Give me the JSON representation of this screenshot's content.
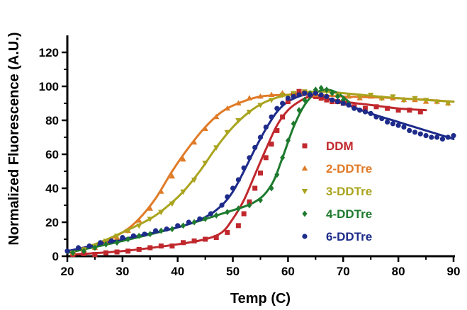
{
  "chart_data": {
    "type": "scatter",
    "xlabel": "Temp (C)",
    "ylabel": "Normalized Fluorescence (A.U.)",
    "xlim": [
      20,
      90
    ],
    "ylim": [
      0,
      130
    ],
    "xticks": [
      20,
      30,
      40,
      50,
      60,
      70,
      80,
      90
    ],
    "yticks": [
      0,
      20,
      40,
      60,
      80,
      100,
      120
    ],
    "grid": false,
    "legend_position": "right",
    "series": [
      {
        "name": "DDM",
        "color": "#c0282d",
        "marker": "square",
        "points": [
          [
            21,
            1
          ],
          [
            23,
            1.5
          ],
          [
            25,
            1
          ],
          [
            27,
            2
          ],
          [
            29,
            2.5
          ],
          [
            31,
            3
          ],
          [
            33,
            4
          ],
          [
            35,
            5
          ],
          [
            37,
            6
          ],
          [
            39,
            6
          ],
          [
            41,
            8
          ],
          [
            43,
            9
          ],
          [
            45,
            10
          ],
          [
            47,
            11
          ],
          [
            49,
            14
          ],
          [
            51,
            18
          ],
          [
            52,
            25
          ],
          [
            53,
            32
          ],
          [
            54,
            40
          ],
          [
            55,
            49
          ],
          [
            56,
            58
          ],
          [
            57,
            66
          ],
          [
            58,
            74
          ],
          [
            59,
            82
          ],
          [
            60,
            91
          ],
          [
            61,
            95
          ],
          [
            62,
            97
          ],
          [
            63,
            96
          ],
          [
            64,
            95
          ],
          [
            65,
            94
          ],
          [
            66,
            93
          ],
          [
            67,
            92
          ],
          [
            68,
            91
          ],
          [
            69,
            91
          ],
          [
            70,
            90
          ],
          [
            72,
            88
          ],
          [
            74,
            87
          ],
          [
            76,
            88
          ],
          [
            78,
            87
          ],
          [
            80,
            86
          ],
          [
            82,
            86
          ],
          [
            84,
            85
          ]
        ],
        "fit": [
          [
            21,
            1
          ],
          [
            30,
            3
          ],
          [
            40,
            7
          ],
          [
            45,
            10
          ],
          [
            48,
            14
          ],
          [
            50,
            22
          ],
          [
            52,
            33
          ],
          [
            54,
            48
          ],
          [
            56,
            63
          ],
          [
            58,
            77
          ],
          [
            60,
            86
          ],
          [
            62,
            91
          ],
          [
            64,
            94
          ],
          [
            66,
            93
          ],
          [
            70,
            91
          ],
          [
            75,
            89
          ],
          [
            80,
            87
          ],
          [
            85,
            86
          ]
        ]
      },
      {
        "name": "2-DDTre",
        "color": "#e07b28",
        "marker": "triangle-up",
        "points": [
          [
            21,
            2
          ],
          [
            23,
            4
          ],
          [
            25,
            5
          ],
          [
            27,
            8
          ],
          [
            29,
            11
          ],
          [
            31,
            15
          ],
          [
            33,
            21
          ],
          [
            35,
            28
          ],
          [
            37,
            38
          ],
          [
            39,
            47
          ],
          [
            41,
            57
          ],
          [
            43,
            67
          ],
          [
            45,
            75
          ],
          [
            47,
            82
          ],
          [
            49,
            87
          ],
          [
            51,
            90
          ],
          [
            53,
            93
          ],
          [
            55,
            94
          ],
          [
            57,
            95
          ],
          [
            59,
            96
          ],
          [
            61,
            95
          ],
          [
            63,
            96
          ],
          [
            65,
            95
          ],
          [
            67,
            94
          ],
          [
            69,
            95
          ],
          [
            71,
            94
          ],
          [
            73,
            93
          ],
          [
            75,
            94
          ],
          [
            77,
            93
          ],
          [
            79,
            93
          ],
          [
            81,
            92
          ],
          [
            83,
            92
          ],
          [
            85,
            91
          ],
          [
            87,
            91
          ],
          [
            89,
            90
          ]
        ],
        "fit": [
          [
            20,
            2
          ],
          [
            25,
            6
          ],
          [
            30,
            14
          ],
          [
            33,
            22
          ],
          [
            36,
            34
          ],
          [
            39,
            50
          ],
          [
            42,
            64
          ],
          [
            45,
            76
          ],
          [
            48,
            85
          ],
          [
            51,
            90
          ],
          [
            55,
            94
          ],
          [
            60,
            95
          ],
          [
            65,
            95
          ],
          [
            70,
            94
          ],
          [
            80,
            93
          ],
          [
            90,
            91
          ]
        ]
      },
      {
        "name": "3-DDTre",
        "color": "#a9a41e",
        "marker": "triangle-down",
        "points": [
          [
            21,
            2
          ],
          [
            23,
            4
          ],
          [
            25,
            6
          ],
          [
            27,
            9
          ],
          [
            29,
            12
          ],
          [
            31,
            15
          ],
          [
            33,
            18
          ],
          [
            35,
            22
          ],
          [
            37,
            26
          ],
          [
            39,
            31
          ],
          [
            41,
            38
          ],
          [
            43,
            45
          ],
          [
            45,
            55
          ],
          [
            47,
            64
          ],
          [
            49,
            73
          ],
          [
            51,
            80
          ],
          [
            53,
            85
          ],
          [
            55,
            89
          ],
          [
            57,
            92
          ],
          [
            59,
            95
          ],
          [
            61,
            96
          ],
          [
            63,
            97
          ],
          [
            65,
            96
          ],
          [
            67,
            97
          ],
          [
            69,
            95
          ],
          [
            71,
            95
          ],
          [
            73,
            94
          ],
          [
            75,
            95
          ],
          [
            77,
            93
          ],
          [
            79,
            94
          ],
          [
            81,
            92
          ],
          [
            83,
            93
          ],
          [
            85,
            92
          ],
          [
            87,
            91
          ],
          [
            89,
            90
          ]
        ],
        "fit": [
          [
            20,
            2
          ],
          [
            25,
            7
          ],
          [
            30,
            14
          ],
          [
            35,
            22
          ],
          [
            38,
            29
          ],
          [
            41,
            38
          ],
          [
            44,
            50
          ],
          [
            47,
            64
          ],
          [
            50,
            76
          ],
          [
            53,
            85
          ],
          [
            56,
            91
          ],
          [
            60,
            95
          ],
          [
            65,
            97
          ],
          [
            70,
            96
          ],
          [
            80,
            93
          ],
          [
            90,
            91
          ]
        ]
      },
      {
        "name": "4-DDTre",
        "color": "#1e7a2e",
        "marker": "diamond",
        "points": [
          [
            21,
            2
          ],
          [
            23,
            3
          ],
          [
            25,
            5
          ],
          [
            27,
            7
          ],
          [
            29,
            8
          ],
          [
            31,
            10
          ],
          [
            33,
            12
          ],
          [
            35,
            13
          ],
          [
            37,
            15
          ],
          [
            39,
            16
          ],
          [
            41,
            18
          ],
          [
            43,
            20
          ],
          [
            45,
            22
          ],
          [
            47,
            24
          ],
          [
            49,
            26
          ],
          [
            51,
            28
          ],
          [
            53,
            30
          ],
          [
            55,
            33
          ],
          [
            57,
            40
          ],
          [
            58,
            48
          ],
          [
            59,
            58
          ],
          [
            60,
            68
          ],
          [
            61,
            78
          ],
          [
            62,
            86
          ],
          [
            63,
            92
          ],
          [
            64,
            96
          ],
          [
            65,
            98
          ],
          [
            66,
            99
          ],
          [
            67,
            98
          ],
          [
            68,
            96
          ],
          [
            69,
            94
          ],
          [
            70,
            92
          ],
          [
            71,
            90
          ]
        ],
        "fit": [
          [
            20,
            2
          ],
          [
            30,
            9
          ],
          [
            40,
            17
          ],
          [
            48,
            25
          ],
          [
            54,
            32
          ],
          [
            57,
            42
          ],
          [
            59,
            58
          ],
          [
            61,
            76
          ],
          [
            63,
            89
          ],
          [
            65,
            96
          ],
          [
            67,
            98
          ],
          [
            69,
            96
          ],
          [
            71,
            91
          ]
        ]
      },
      {
        "name": "6-DDTre",
        "color": "#1d2b8a",
        "marker": "circle",
        "points": [
          [
            20,
            3
          ],
          [
            22,
            5
          ],
          [
            24,
            6
          ],
          [
            26,
            8
          ],
          [
            28,
            9
          ],
          [
            30,
            11
          ],
          [
            32,
            12
          ],
          [
            34,
            13
          ],
          [
            36,
            15
          ],
          [
            38,
            16
          ],
          [
            40,
            18
          ],
          [
            42,
            20
          ],
          [
            44,
            22
          ],
          [
            46,
            25
          ],
          [
            48,
            30
          ],
          [
            49,
            35
          ],
          [
            50,
            40
          ],
          [
            51,
            45
          ],
          [
            52,
            52
          ],
          [
            53,
            58
          ],
          [
            54,
            64
          ],
          [
            55,
            70
          ],
          [
            56,
            76
          ],
          [
            57,
            82
          ],
          [
            58,
            87
          ],
          [
            59,
            90
          ],
          [
            60,
            93
          ],
          [
            61,
            94
          ],
          [
            62,
            95
          ],
          [
            63,
            96
          ],
          [
            64,
            95
          ],
          [
            65,
            96
          ],
          [
            66,
            95
          ],
          [
            67,
            94
          ],
          [
            68,
            92
          ],
          [
            69,
            91
          ],
          [
            70,
            90
          ],
          [
            71,
            89
          ],
          [
            72,
            87
          ],
          [
            73,
            86
          ],
          [
            74,
            85
          ],
          [
            75,
            84
          ],
          [
            76,
            82
          ],
          [
            77,
            81
          ],
          [
            78,
            79
          ],
          [
            79,
            78
          ],
          [
            80,
            77
          ],
          [
            81,
            76
          ],
          [
            82,
            74
          ],
          [
            83,
            73
          ],
          [
            84,
            72
          ],
          [
            85,
            71
          ],
          [
            86,
            70
          ],
          [
            87,
            70
          ],
          [
            88,
            69
          ],
          [
            89,
            70
          ],
          [
            90,
            71
          ]
        ],
        "fit": [
          [
            20,
            3
          ],
          [
            30,
            10
          ],
          [
            40,
            17
          ],
          [
            45,
            23
          ],
          [
            48,
            30
          ],
          [
            50,
            38
          ],
          [
            52,
            50
          ],
          [
            54,
            63
          ],
          [
            56,
            75
          ],
          [
            58,
            85
          ],
          [
            60,
            91
          ],
          [
            63,
            95
          ],
          [
            66,
            94
          ],
          [
            70,
            90
          ],
          [
            75,
            84
          ],
          [
            80,
            79
          ],
          [
            85,
            74
          ],
          [
            90,
            69
          ]
        ]
      }
    ]
  }
}
